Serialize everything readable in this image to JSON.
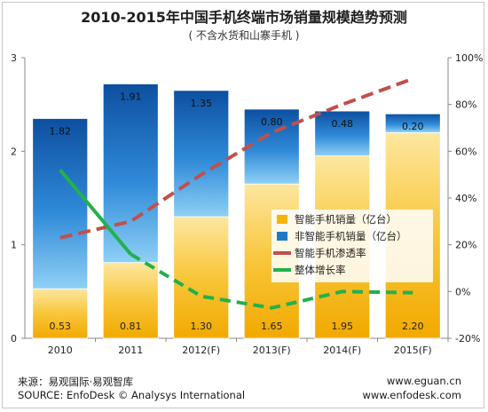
{
  "header": {
    "title": "2010-2015年中国手机终端市场销量规模趋势预测",
    "subtitle": "( 不含水货和山寨手机 )"
  },
  "footer": {
    "source_cn": "来源：易观国际·易观智库",
    "source_en": "SOURCE: EnfoDesk © Analysys International",
    "website1": "www.eguan.cn",
    "website2": "www.enfodesk.com"
  },
  "chart_data": {
    "type": "bar",
    "stacked": true,
    "categories": [
      "2010",
      "2011",
      "2012(F)",
      "2013(F)",
      "2014(F)",
      "2015(F)"
    ],
    "series": [
      {
        "name": "智能手机销量（亿台）",
        "axis": "left",
        "color": "#f5b500",
        "values": [
          0.53,
          0.81,
          1.3,
          1.65,
          1.95,
          2.2
        ]
      },
      {
        "name": "非智能手机销量（亿台）",
        "axis": "left",
        "color": "#1e78c8",
        "values": [
          1.82,
          1.91,
          1.35,
          0.8,
          0.48,
          0.2
        ]
      },
      {
        "name": "智能手机渗透率",
        "type": "line",
        "dashed": true,
        "axis": "right",
        "color": "#c0504d",
        "values": [
          23,
          30,
          50,
          68,
          80,
          91
        ]
      },
      {
        "name": "整体增长率",
        "type": "line",
        "dashed_from_index": 2,
        "axis": "right",
        "color": "#22b14c",
        "values": [
          52,
          16,
          -2,
          -7,
          0,
          -0.5
        ]
      }
    ],
    "y_left": {
      "min": 0,
      "max": 3,
      "ticks": [
        "0",
        "1",
        "2",
        "3"
      ]
    },
    "y_right": {
      "min": -20,
      "max": 100,
      "ticks": [
        "-20%",
        "0%",
        "20%",
        "40%",
        "60%",
        "80%",
        "100%"
      ]
    },
    "legend_position": "right-middle",
    "grid": false
  }
}
